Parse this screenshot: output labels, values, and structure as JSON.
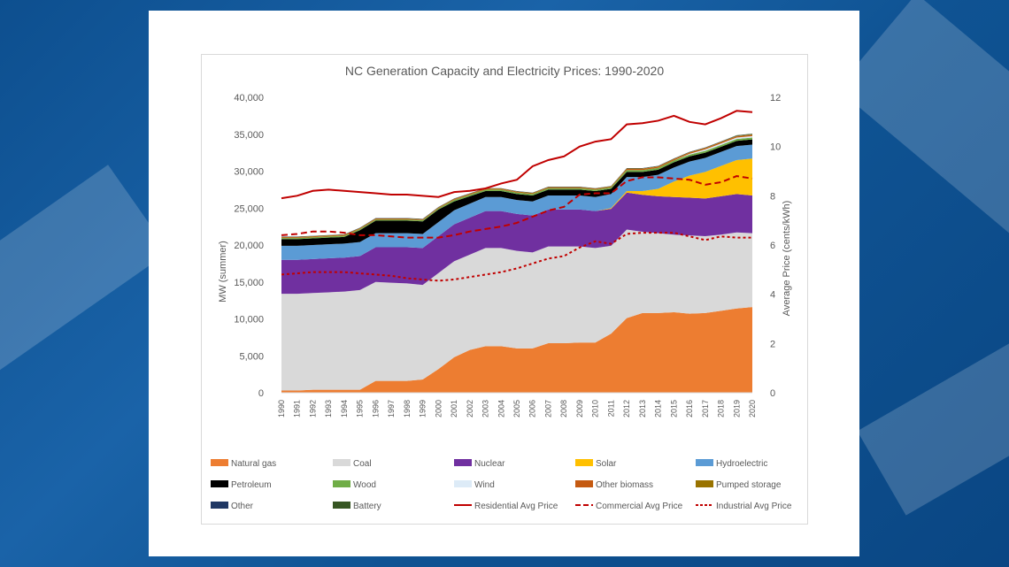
{
  "chart_data": {
    "type": "area",
    "title": "NC Generation Capacity and Electricity Prices: 1990-2020",
    "ylabel": "MW (summer)",
    "y2label": "Average Price (cents/kWh)",
    "ylim": [
      0,
      40000
    ],
    "y2lim": [
      0,
      12
    ],
    "yticks": [
      "0",
      "5,000",
      "10,000",
      "15,000",
      "20,000",
      "25,000",
      "30,000",
      "35,000",
      "40,000"
    ],
    "y2ticks": [
      "0",
      "2",
      "4",
      "6",
      "8",
      "10",
      "12"
    ],
    "grid": false,
    "legend_position": "bottom",
    "x": [
      "1990",
      "1991",
      "1992",
      "1993",
      "1994",
      "1995",
      "1996",
      "1997",
      "1998",
      "1999",
      "2000",
      "2001",
      "2002",
      "2003",
      "2004",
      "2005",
      "2006",
      "2007",
      "2008",
      "2009",
      "2010",
      "2011",
      "2012",
      "2013",
      "2014",
      "2015",
      "2016",
      "2017",
      "2018",
      "2019",
      "2020"
    ],
    "stacked_series": [
      {
        "name": "Natural gas",
        "color": "#ed7d31",
        "values": [
          300,
          300,
          400,
          400,
          400,
          400,
          1600,
          1600,
          1600,
          1800,
          3200,
          4800,
          5800,
          6300,
          6300,
          6000,
          6000,
          6700,
          6700,
          6800,
          6800,
          8000,
          10100,
          10800,
          10800,
          10900,
          10700,
          10800,
          11100,
          11400,
          11600
        ]
      },
      {
        "name": "Coal",
        "color": "#d9d9d9",
        "values": [
          13100,
          13100,
          13100,
          13200,
          13300,
          13500,
          13400,
          13300,
          13200,
          12800,
          13000,
          13000,
          12900,
          13300,
          13300,
          13200,
          13000,
          13100,
          13100,
          13000,
          12800,
          11900,
          12000,
          11000,
          10800,
          10500,
          10600,
          10400,
          10300,
          10300,
          10000
        ]
      },
      {
        "name": "Nuclear",
        "color": "#7030a0",
        "values": [
          4600,
          4600,
          4600,
          4600,
          4600,
          4600,
          4700,
          4800,
          4900,
          5000,
          5000,
          5000,
          5000,
          5000,
          5000,
          5000,
          5000,
          5000,
          5000,
          5000,
          5000,
          5000,
          5000,
          5000,
          5000,
          5100,
          5100,
          5100,
          5200,
          5200,
          5100
        ]
      },
      {
        "name": "Solar",
        "color": "#ffc000",
        "values": [
          0,
          0,
          0,
          0,
          0,
          0,
          0,
          0,
          0,
          0,
          0,
          0,
          0,
          0,
          0,
          0,
          0,
          0,
          0,
          0,
          0,
          100,
          200,
          500,
          1000,
          2100,
          3000,
          3600,
          4100,
          4600,
          5000
        ]
      },
      {
        "name": "Hydroelectric",
        "color": "#5b9bd5",
        "values": [
          1900,
          1900,
          1900,
          1900,
          1900,
          1900,
          1900,
          1900,
          1900,
          1900,
          1900,
          1900,
          1900,
          1900,
          1900,
          1900,
          1900,
          1900,
          1900,
          1900,
          1900,
          1900,
          1900,
          1900,
          1900,
          1900,
          1900,
          1900,
          1900,
          1900,
          1900
        ]
      },
      {
        "name": "Petroleum",
        "color": "#000000",
        "values": [
          900,
          900,
          900,
          900,
          900,
          1600,
          1700,
          1700,
          1700,
          1700,
          1700,
          1200,
          1000,
          800,
          800,
          800,
          800,
          800,
          800,
          800,
          800,
          700,
          700,
          700,
          700,
          700,
          700,
          700,
          700,
          700,
          700
        ]
      },
      {
        "name": "Wood",
        "color": "#70ad47",
        "values": [
          150,
          150,
          150,
          150,
          150,
          150,
          150,
          150,
          150,
          150,
          150,
          200,
          200,
          200,
          200,
          200,
          200,
          200,
          200,
          200,
          200,
          200,
          250,
          250,
          250,
          250,
          250,
          250,
          250,
          250,
          250
        ]
      },
      {
        "name": "Wind",
        "color": "#ddebf7",
        "values": [
          0,
          0,
          0,
          0,
          0,
          0,
          0,
          0,
          0,
          0,
          0,
          0,
          0,
          0,
          0,
          0,
          0,
          0,
          0,
          0,
          0,
          0,
          0,
          0,
          0,
          0,
          100,
          200,
          200,
          200,
          200
        ]
      },
      {
        "name": "Other biomass",
        "color": "#c55a11",
        "values": [
          80,
          80,
          80,
          80,
          80,
          80,
          80,
          80,
          80,
          80,
          80,
          80,
          80,
          80,
          80,
          80,
          80,
          80,
          80,
          80,
          80,
          80,
          150,
          150,
          150,
          150,
          150,
          150,
          150,
          150,
          150
        ]
      },
      {
        "name": "Pumped storage",
        "color": "#997300",
        "values": [
          80,
          80,
          80,
          80,
          80,
          80,
          80,
          80,
          80,
          80,
          80,
          80,
          80,
          80,
          80,
          80,
          80,
          80,
          80,
          80,
          80,
          80,
          80,
          80,
          80,
          80,
          80,
          80,
          80,
          80,
          80
        ]
      },
      {
        "name": "Other",
        "color": "#203864",
        "values": [
          40,
          40,
          40,
          40,
          40,
          40,
          40,
          40,
          40,
          40,
          40,
          40,
          40,
          40,
          40,
          40,
          40,
          40,
          40,
          40,
          40,
          40,
          40,
          40,
          40,
          40,
          40,
          40,
          40,
          40,
          40
        ]
      },
      {
        "name": "Battery",
        "color": "#375623",
        "values": [
          0,
          0,
          0,
          0,
          0,
          0,
          0,
          0,
          0,
          0,
          0,
          0,
          0,
          0,
          0,
          0,
          0,
          0,
          0,
          0,
          0,
          0,
          0,
          0,
          0,
          0,
          0,
          0,
          0,
          50,
          50
        ]
      }
    ],
    "price_series": [
      {
        "name": "Residential Avg Price",
        "color": "#c00000",
        "dash": "solid",
        "values": [
          7.9,
          8.0,
          8.2,
          8.25,
          8.2,
          8.15,
          8.1,
          8.05,
          8.05,
          8.0,
          7.95,
          8.15,
          8.2,
          8.3,
          8.5,
          8.65,
          9.2,
          9.45,
          9.6,
          10.0,
          10.2,
          10.3,
          10.9,
          10.95,
          11.05,
          11.25,
          11.0,
          10.9,
          11.15,
          11.45,
          11.4
        ]
      },
      {
        "name": "Commercial Avg Price",
        "color": "#c00000",
        "dash": "dash",
        "values": [
          6.4,
          6.45,
          6.55,
          6.55,
          6.5,
          6.4,
          6.4,
          6.35,
          6.3,
          6.3,
          6.3,
          6.4,
          6.55,
          6.65,
          6.75,
          6.9,
          7.15,
          7.4,
          7.55,
          8.05,
          8.1,
          8.1,
          8.6,
          8.75,
          8.75,
          8.7,
          8.65,
          8.45,
          8.55,
          8.8,
          8.7
        ]
      },
      {
        "name": "Industrial Avg Price",
        "color": "#c00000",
        "dash": "dot",
        "values": [
          4.8,
          4.85,
          4.9,
          4.9,
          4.9,
          4.85,
          4.8,
          4.75,
          4.65,
          4.6,
          4.55,
          4.6,
          4.7,
          4.8,
          4.9,
          5.05,
          5.25,
          5.45,
          5.55,
          5.9,
          6.15,
          6.05,
          6.45,
          6.5,
          6.5,
          6.5,
          6.35,
          6.2,
          6.35,
          6.3,
          6.3
        ]
      }
    ],
    "legend": [
      {
        "label": "Natural gas",
        "color": "#ed7d31",
        "kind": "box"
      },
      {
        "label": "Coal",
        "color": "#d9d9d9",
        "kind": "box"
      },
      {
        "label": "Nuclear",
        "color": "#7030a0",
        "kind": "box"
      },
      {
        "label": "Solar",
        "color": "#ffc000",
        "kind": "box"
      },
      {
        "label": "Hydroelectric",
        "color": "#5b9bd5",
        "kind": "box"
      },
      {
        "label": "Petroleum",
        "color": "#000000",
        "kind": "box"
      },
      {
        "label": "Wood",
        "color": "#70ad47",
        "kind": "box"
      },
      {
        "label": "Wind",
        "color": "#ddebf7",
        "kind": "box"
      },
      {
        "label": "Other biomass",
        "color": "#c55a11",
        "kind": "box"
      },
      {
        "label": "Pumped storage",
        "color": "#997300",
        "kind": "box"
      },
      {
        "label": "Other",
        "color": "#203864",
        "kind": "box"
      },
      {
        "label": "Battery",
        "color": "#375623",
        "kind": "box"
      },
      {
        "label": "Residential Avg Price",
        "color": "#c00000",
        "kind": "solid"
      },
      {
        "label": "Commercial Avg Price",
        "color": "#c00000",
        "kind": "dash"
      },
      {
        "label": "Industrial Avg Price",
        "color": "#c00000",
        "kind": "dot"
      }
    ]
  }
}
